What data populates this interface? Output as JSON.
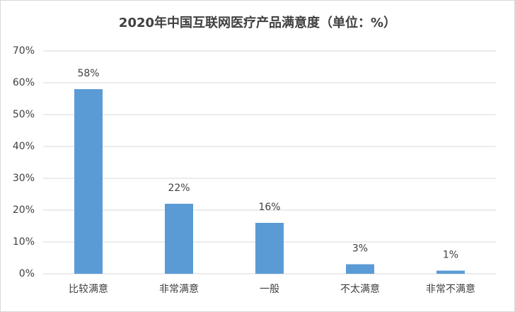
{
  "chart_data": {
    "type": "bar",
    "title": "2020年中国互联网医疗产品满意度（单位：%）",
    "categories": [
      "比较满意",
      "非常满意",
      "一般",
      "不太满意",
      "非常不满意"
    ],
    "values": [
      58,
      22,
      16,
      3,
      1
    ],
    "value_labels": [
      "58%",
      "22%",
      "16%",
      "3%",
      "1%"
    ],
    "color": "#5b9bd5",
    "ylim": [
      0,
      70
    ],
    "yticks": [
      {
        "value": 0,
        "label": "0%"
      },
      {
        "value": 10,
        "label": "10%"
      },
      {
        "value": 20,
        "label": "20%"
      },
      {
        "value": 30,
        "label": "30%"
      },
      {
        "value": 40,
        "label": "40%"
      },
      {
        "value": 50,
        "label": "50%"
      },
      {
        "value": 60,
        "label": "60%"
      },
      {
        "value": 70,
        "label": "70%"
      }
    ],
    "grid": true
  }
}
